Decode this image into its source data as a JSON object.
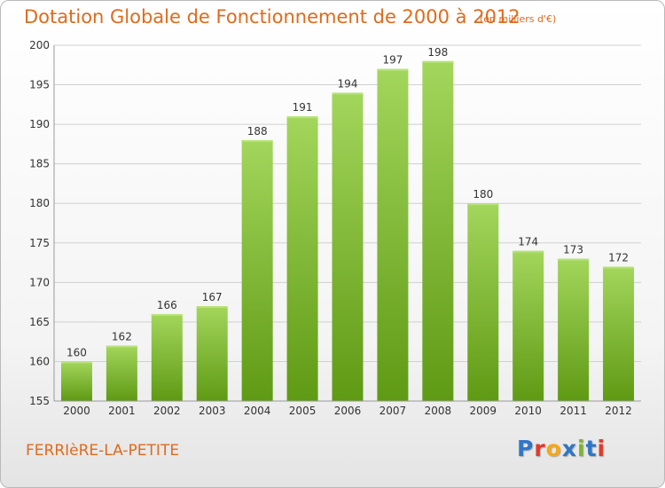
{
  "title": "Dotation Globale de Fonctionnement de 2000 à 2012",
  "subtitle": "(en milliers d'€)",
  "commune": "FERRIèRE-LA-PETITE",
  "brand": {
    "name": "Proxiti",
    "letter_colors": [
      "#2f76c5",
      "#e23a2a",
      "#f2a81d",
      "#2f76c5",
      "#7cb52a",
      "#2f76c5",
      "#e23a2a"
    ]
  },
  "colors": {
    "bar_light": "#a3d65c",
    "bar_dark": "#5f9a14",
    "title": "#e06a1c",
    "grid": "#d0d0d0",
    "axis_text": "#333333"
  },
  "chart_data": {
    "type": "bar",
    "title": "Dotation Globale de Fonctionnement de 2000 à 2012",
    "ylabel": "",
    "xlabel": "",
    "categories": [
      "2000",
      "2001",
      "2002",
      "2003",
      "2004",
      "2005",
      "2006",
      "2007",
      "2008",
      "2009",
      "2010",
      "2011",
      "2012"
    ],
    "values": [
      160,
      162,
      166,
      167,
      188,
      191,
      194,
      197,
      198,
      180,
      174,
      173,
      172
    ],
    "ylim": [
      155,
      200
    ],
    "yticks": [
      155,
      160,
      165,
      170,
      175,
      180,
      185,
      190,
      195,
      200
    ],
    "grid": true,
    "data_labels": true
  }
}
